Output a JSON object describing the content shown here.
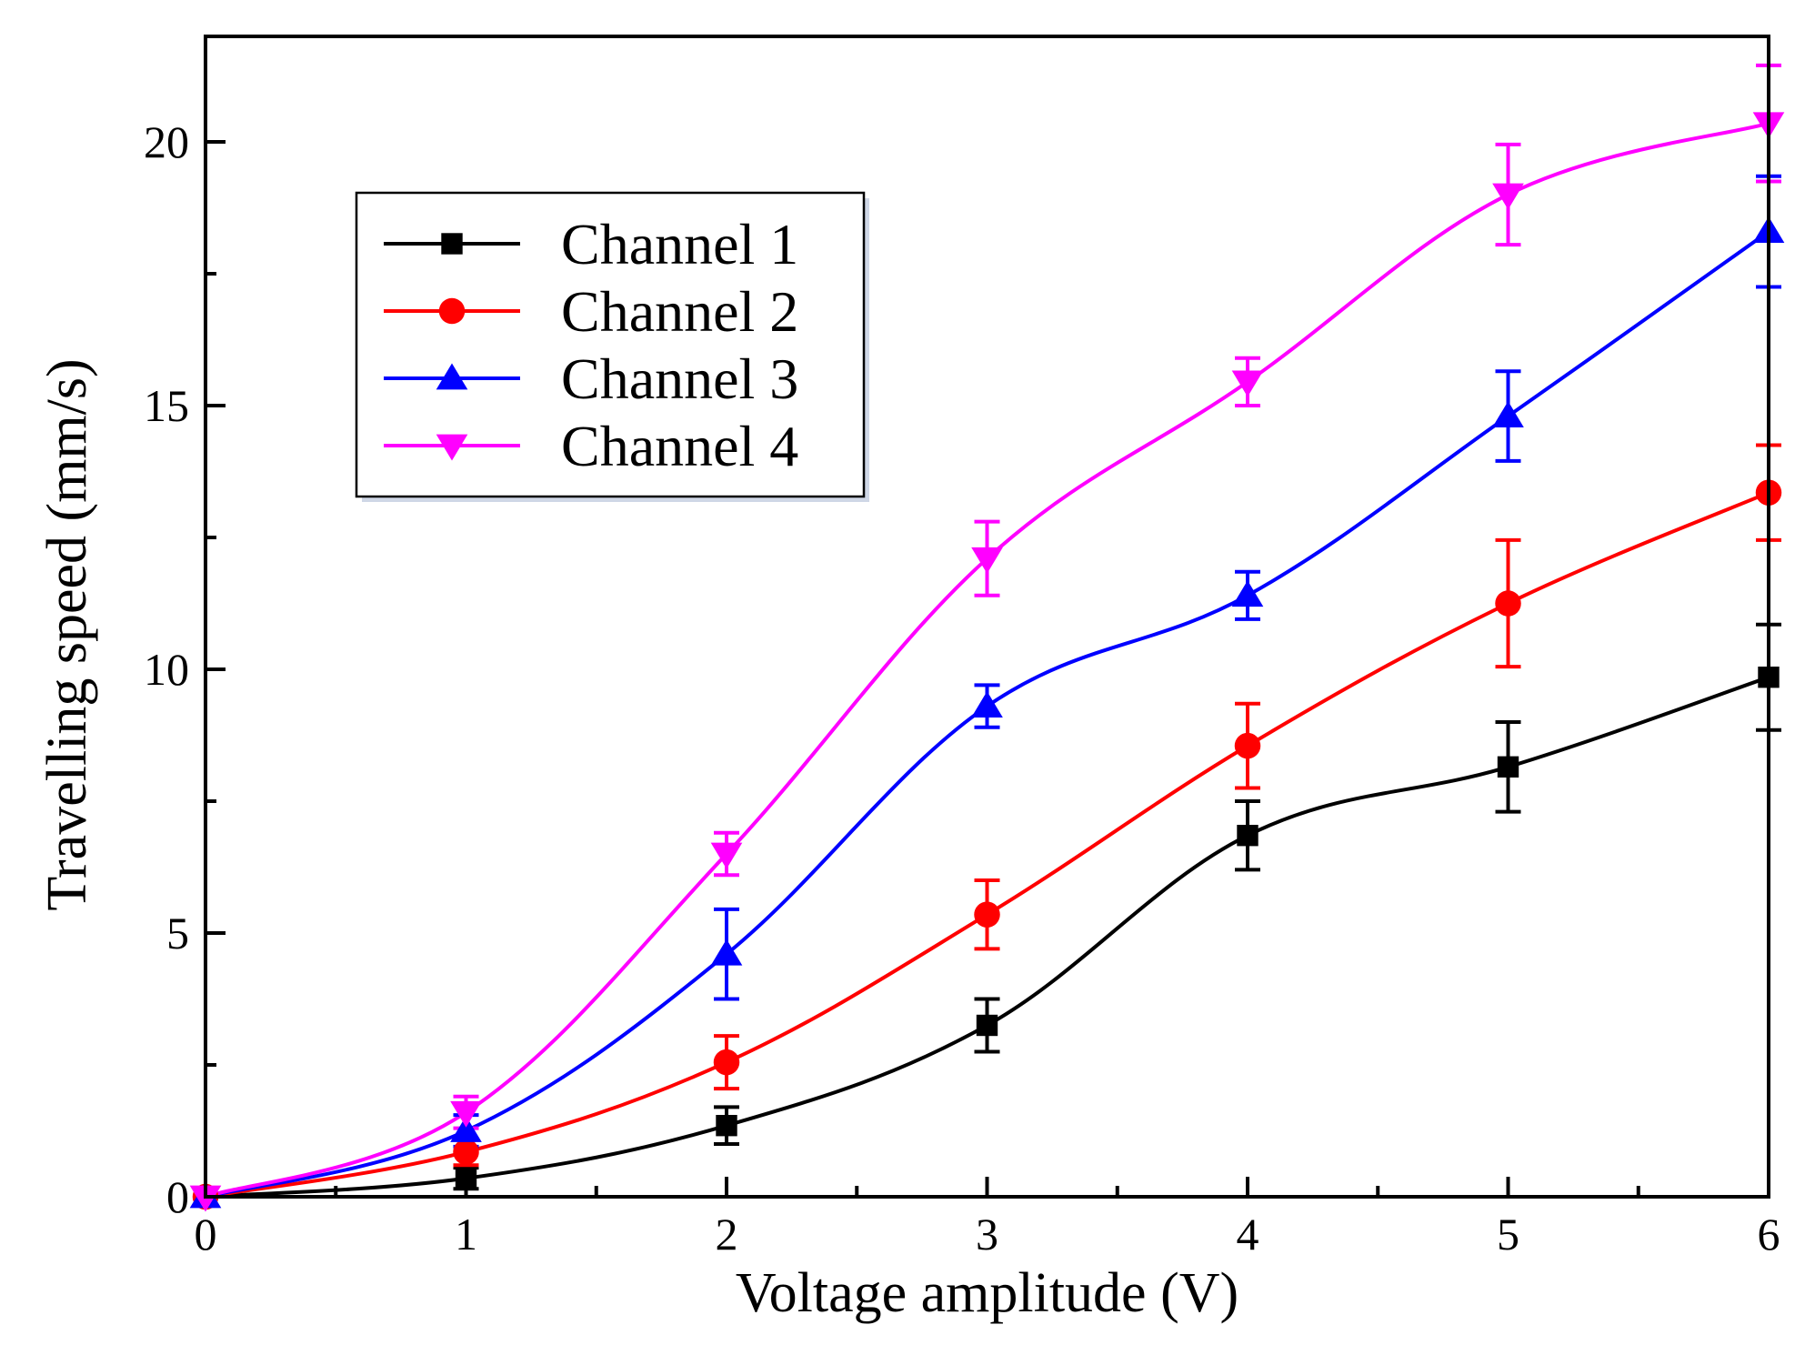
{
  "chart_data": {
    "type": "line",
    "title": "",
    "xlabel": "Voltage amplitude (V)",
    "ylabel": "Travelling speed (mm/s)",
    "xlim": [
      0,
      6
    ],
    "ylim": [
      0,
      22
    ],
    "x_ticks": [
      0,
      1,
      2,
      3,
      4,
      5,
      6
    ],
    "y_ticks": [
      0,
      5,
      10,
      15,
      20
    ],
    "legend_position": "upper-left",
    "x": [
      0,
      1,
      2,
      3,
      4,
      5,
      6
    ],
    "series": [
      {
        "name": "Channel 1",
        "color": "#000000",
        "marker": "square",
        "values": [
          0.0,
          0.35,
          1.35,
          3.25,
          6.85,
          8.15,
          9.85
        ],
        "errors": [
          0.0,
          0.2,
          0.35,
          0.5,
          0.65,
          0.85,
          1.0
        ]
      },
      {
        "name": "Channel 2",
        "color": "#ff0000",
        "marker": "circle",
        "values": [
          0.0,
          0.85,
          2.55,
          5.35,
          8.55,
          11.25,
          13.35
        ],
        "errors": [
          0.0,
          0.25,
          0.5,
          0.65,
          0.8,
          1.2,
          0.9
        ]
      },
      {
        "name": "Channel 3",
        "color": "#0000ff",
        "marker": "triangle-up",
        "values": [
          0.0,
          1.25,
          4.6,
          9.3,
          11.4,
          14.8,
          18.3
        ],
        "errors": [
          0.0,
          0.3,
          0.85,
          0.4,
          0.45,
          0.85,
          1.05
        ]
      },
      {
        "name": "Channel 4",
        "color": "#ff00ff",
        "marker": "triangle-down",
        "values": [
          0.0,
          1.6,
          6.5,
          12.1,
          15.45,
          19.0,
          20.35
        ],
        "errors": [
          0.0,
          0.3,
          0.4,
          0.7,
          0.45,
          0.95,
          1.1
        ]
      }
    ]
  }
}
